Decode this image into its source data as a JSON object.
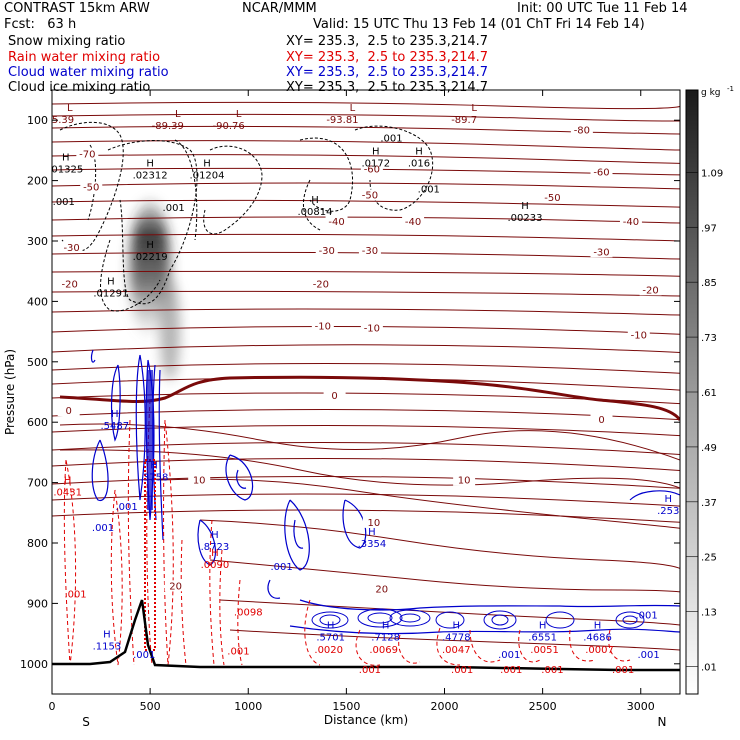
{
  "header": {
    "model": "CONTRAST 15km ARW",
    "org": "NCAR/MMM",
    "init": "Init: 00 UTC Tue 11 Feb 14",
    "fcst": "Fcst:   63 h",
    "valid": "Valid: 15 UTC Thu 13 Feb 14 (01 ChT Fri 14 Feb 14)"
  },
  "colors": {
    "snow": "#000000",
    "rain": "#e00000",
    "cloud_water": "#0000cc",
    "cloud_ice": "#000000",
    "temperature": "#7a0a0a",
    "terrain": "#000000"
  },
  "chart_data": {
    "type": "cross-section",
    "xlabel": "Distance (km)",
    "ylabel": "Pressure (hPa)",
    "xlim": [
      0,
      3200
    ],
    "ylim": [
      1050,
      50
    ],
    "x_ticks": [
      0,
      500,
      1000,
      1500,
      2000,
      2500,
      3000
    ],
    "y_ticks": [
      100,
      200,
      300,
      400,
      500,
      600,
      700,
      800,
      900,
      1000
    ],
    "left_end": "S",
    "right_end": "N",
    "fields": [
      {
        "name": "Snow mixing ratio",
        "xy": "XY= 235.3,  2.5 to 235.3,214.7"
      },
      {
        "name": "Rain water mixing ratio",
        "xy": "XY= 235.3,  2.5 to 235.3,214.7"
      },
      {
        "name": "Cloud water mixing ratio",
        "xy": "XY= 235.3,  2.5 to 235.3,214.7"
      },
      {
        "name": "Cloud ice mixing ratio",
        "xy": "XY= 235.3,  2.5 to 235.3,214.7"
      }
    ],
    "colorbar": {
      "unit": "g kg",
      "unit_exp": "-1",
      "ticks": [
        ".01",
        ".13",
        ".25",
        ".37",
        ".49",
        ".61",
        ".73",
        ".85",
        ".97",
        "1.09"
      ]
    },
    "temperature_labels": [
      {
        "text": "-80",
        "x": 2700,
        "p": 120
      },
      {
        "text": "-70",
        "x": 180,
        "p": 160
      },
      {
        "text": "-60",
        "x": 1630,
        "p": 185
      },
      {
        "text": "-60",
        "x": 2800,
        "p": 190
      },
      {
        "text": "-50",
        "x": 200,
        "p": 215
      },
      {
        "text": "-50",
        "x": 1620,
        "p": 228
      },
      {
        "text": "-50",
        "x": 2550,
        "p": 232
      },
      {
        "text": "-40",
        "x": 1450,
        "p": 272
      },
      {
        "text": "-40",
        "x": 1840,
        "p": 272
      },
      {
        "text": "-40",
        "x": 2950,
        "p": 272
      },
      {
        "text": "-30",
        "x": 100,
        "p": 315
      },
      {
        "text": "-30",
        "x": 1400,
        "p": 320
      },
      {
        "text": "-30",
        "x": 1620,
        "p": 320
      },
      {
        "text": "-30",
        "x": 2800,
        "p": 322
      },
      {
        "text": "-20",
        "x": 90,
        "p": 375
      },
      {
        "text": "-20",
        "x": 1370,
        "p": 375
      },
      {
        "text": "-20",
        "x": 3050,
        "p": 385
      },
      {
        "text": "-10",
        "x": 1380,
        "p": 445
      },
      {
        "text": "-10",
        "x": 1630,
        "p": 448
      },
      {
        "text": "-10",
        "x": 2990,
        "p": 460
      },
      {
        "text": "0",
        "x": 85,
        "p": 585
      },
      {
        "text": "0",
        "x": 1440,
        "p": 560
      },
      {
        "text": "0",
        "x": 2800,
        "p": 600
      },
      {
        "text": "10",
        "x": 750,
        "p": 700
      },
      {
        "text": "10",
        "x": 1640,
        "p": 770
      },
      {
        "text": "10",
        "x": 2100,
        "p": 700
      },
      {
        "text": "20",
        "x": 630,
        "p": 875
      },
      {
        "text": "20",
        "x": 1680,
        "p": 880
      }
    ],
    "high_labels": [
      {
        "value": ".01325",
        "x": 70,
        "p": 185,
        "color": "snow"
      },
      {
        "value": ".02312",
        "x": 500,
        "p": 195,
        "color": "snow"
      },
      {
        "value": ".01204",
        "x": 790,
        "p": 195,
        "color": "snow"
      },
      {
        "value": ".0172",
        "x": 1650,
        "p": 175,
        "color": "snow"
      },
      {
        "value": ".016",
        "x": 1870,
        "p": 175,
        "color": "snow"
      },
      {
        "value": ".00814",
        "x": 1340,
        "p": 255,
        "color": "snow"
      },
      {
        "value": ".00233",
        "x": 2410,
        "p": 265,
        "color": "snow"
      },
      {
        "value": ".02219",
        "x": 500,
        "p": 330,
        "color": "snow"
      },
      {
        "value": ".01291",
        "x": 300,
        "p": 390,
        "color": "snow"
      },
      {
        "value": ".5487",
        "x": 320,
        "p": 610,
        "color": "cloud_water"
      },
      {
        "value": ".3758",
        "x": 520,
        "p": 695,
        "color": "cloud_water"
      },
      {
        "value": ".0431",
        "x": 80,
        "p": 720,
        "color": "rain"
      },
      {
        "value": ".8723",
        "x": 830,
        "p": 810,
        "color": "cloud_water"
      },
      {
        "value": ".0090",
        "x": 830,
        "p": 840,
        "color": "rain"
      },
      {
        "value": ".3354",
        "x": 1630,
        "p": 805,
        "color": "cloud_water"
      },
      {
        "value": ".1153",
        "x": 280,
        "p": 975,
        "color": "cloud_water"
      },
      {
        "value": ".5701",
        "x": 1420,
        "p": 960,
        "color": "cloud_water"
      },
      {
        "value": ".7128",
        "x": 1700,
        "p": 960,
        "color": "cloud_water"
      },
      {
        "value": ".4778",
        "x": 2060,
        "p": 960,
        "color": "cloud_water"
      },
      {
        "value": ".6551",
        "x": 2500,
        "p": 960,
        "color": "cloud_water"
      },
      {
        "value": ".4686",
        "x": 2780,
        "p": 960,
        "color": "cloud_water"
      },
      {
        "value": ".253",
        "x": 3140,
        "p": 750,
        "color": "cloud_water"
      }
    ],
    "low_labels": [
      {
        "value": "35.39",
        "x": 40,
        "p": 95
      },
      {
        "value": "-89.39",
        "x": 590,
        "p": 105
      },
      {
        "value": "-90.76",
        "x": 900,
        "p": 105
      },
      {
        "value": "-93.81",
        "x": 1480,
        "p": 95
      },
      {
        "value": "-89.7",
        "x": 2100,
        "p": 95
      }
    ],
    "other_values": [
      {
        "value": ".001",
        "x": 60,
        "p": 240,
        "color": "snow"
      },
      {
        "value": ".001",
        "x": 620,
        "p": 250,
        "color": "snow"
      },
      {
        "value": ".001",
        "x": 1730,
        "p": 135,
        "color": "snow"
      },
      {
        "value": ".001",
        "x": 1920,
        "p": 220,
        "color": "snow"
      },
      {
        "value": ".001",
        "x": 380,
        "p": 745,
        "color": "cloud_water"
      },
      {
        "value": ".001",
        "x": 260,
        "p": 780,
        "color": "cloud_water"
      },
      {
        "value": ".001",
        "x": 1170,
        "p": 845,
        "color": "cloud_water"
      },
      {
        "value": ".001",
        "x": 120,
        "p": 890,
        "color": "rain"
      },
      {
        "value": ".0098",
        "x": 1000,
        "p": 920,
        "color": "rain"
      },
      {
        "value": ".001",
        "x": 950,
        "p": 985,
        "color": "rain"
      },
      {
        "value": ".0020",
        "x": 1410,
        "p": 982,
        "color": "rain"
      },
      {
        "value": ".0069",
        "x": 1690,
        "p": 982,
        "color": "rain"
      },
      {
        "value": ".0047",
        "x": 2060,
        "p": 982,
        "color": "rain"
      },
      {
        "value": ".0051",
        "x": 2510,
        "p": 982,
        "color": "rain"
      },
      {
        "value": ".0007",
        "x": 2790,
        "p": 982,
        "color": "rain"
      },
      {
        "value": ".001",
        "x": 1620,
        "p": 1015,
        "color": "rain"
      },
      {
        "value": ".001",
        "x": 2090,
        "p": 1015,
        "color": "rain"
      },
      {
        "value": ".001",
        "x": 2340,
        "p": 1015,
        "color": "rain"
      },
      {
        "value": ".001",
        "x": 2550,
        "p": 1015,
        "color": "rain"
      },
      {
        "value": ".001",
        "x": 2910,
        "p": 1015,
        "color": "rain"
      },
      {
        "value": ".001",
        "x": 2330,
        "p": 990,
        "color": "cloud_water"
      },
      {
        "value": ".001",
        "x": 3040,
        "p": 990,
        "color": "cloud_water"
      },
      {
        "value": ".001",
        "x": 3030,
        "p": 925,
        "color": "cloud_water"
      },
      {
        "value": ".001",
        "x": 470,
        "p": 990,
        "color": "cloud_water"
      }
    ]
  }
}
